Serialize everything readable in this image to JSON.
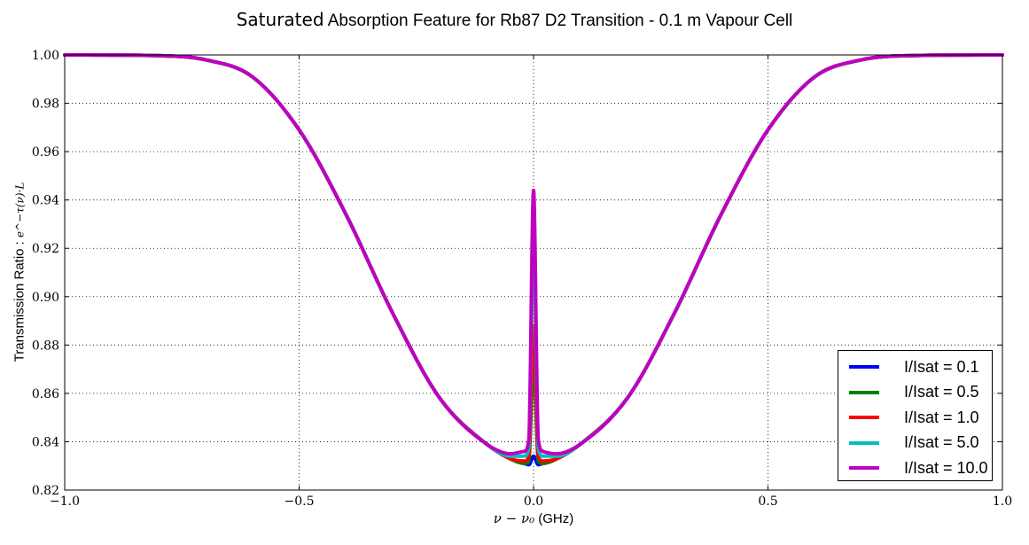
{
  "chart_data": {
    "type": "line",
    "title_prefix": "Saturated",
    "title_rest": "Absorption Feature for Rb87 D2 Transition - 0.1 m Vapour Cell",
    "xlabel_math": "ν − ν₀",
    "xlabel_unit": "(GHz)",
    "ylabel_text": "Transmission Ratio :",
    "ylabel_math": "e^−τ(ν)·L",
    "xlim": [
      -1.0,
      1.0
    ],
    "ylim": [
      0.82,
      1.0
    ],
    "x_ticks": [
      -1.0,
      -0.5,
      0.0,
      0.5,
      1.0
    ],
    "x_tick_labels": [
      "−1.0",
      "−0.5",
      "0.0",
      "0.5",
      "1.0"
    ],
    "y_ticks": [
      0.82,
      0.84,
      0.86,
      0.88,
      0.9,
      0.92,
      0.94,
      0.96,
      0.98,
      1.0
    ],
    "y_tick_labels": [
      "0.82",
      "0.84",
      "0.86",
      "0.88",
      "0.90",
      "0.92",
      "0.94",
      "0.96",
      "0.98",
      "1.00"
    ],
    "grid": true,
    "legend_position": "lower right",
    "series": [
      {
        "name": "I/Isat = 0.1",
        "color": "#0000ff",
        "x": [
          -1.0,
          -0.8,
          -0.7,
          -0.6,
          -0.5,
          -0.4,
          -0.3,
          -0.2,
          -0.1,
          -0.05,
          -0.02,
          -0.01,
          0.0,
          0.01,
          0.02,
          0.05,
          0.1,
          0.2,
          0.3,
          0.4,
          0.5,
          0.6,
          0.7,
          0.8,
          1.0
        ],
        "y": [
          1.0,
          0.9997,
          0.998,
          0.991,
          0.969,
          0.934,
          0.893,
          0.858,
          0.839,
          0.833,
          0.831,
          0.8305,
          0.834,
          0.8305,
          0.831,
          0.833,
          0.839,
          0.858,
          0.893,
          0.934,
          0.969,
          0.991,
          0.998,
          0.9997,
          1.0
        ]
      },
      {
        "name": "I/Isat = 0.5",
        "color": "#008000",
        "x": [
          -1.0,
          -0.8,
          -0.7,
          -0.6,
          -0.5,
          -0.4,
          -0.3,
          -0.2,
          -0.1,
          -0.05,
          -0.02,
          -0.01,
          0.0,
          0.01,
          0.02,
          0.05,
          0.1,
          0.2,
          0.3,
          0.4,
          0.5,
          0.6,
          0.7,
          0.8,
          1.0
        ],
        "y": [
          1.0,
          0.9997,
          0.998,
          0.991,
          0.969,
          0.934,
          0.893,
          0.858,
          0.839,
          0.833,
          0.831,
          0.832,
          0.874,
          0.832,
          0.831,
          0.833,
          0.839,
          0.858,
          0.893,
          0.934,
          0.969,
          0.991,
          0.998,
          0.9997,
          1.0
        ]
      },
      {
        "name": "I/Isat = 1.0",
        "color": "#ff0000",
        "x": [
          -1.0,
          -0.8,
          -0.7,
          -0.6,
          -0.5,
          -0.4,
          -0.3,
          -0.2,
          -0.1,
          -0.05,
          -0.02,
          -0.01,
          0.0,
          0.01,
          0.02,
          0.05,
          0.1,
          0.2,
          0.3,
          0.4,
          0.5,
          0.6,
          0.7,
          0.8,
          1.0
        ],
        "y": [
          1.0,
          0.9997,
          0.998,
          0.991,
          0.969,
          0.934,
          0.893,
          0.858,
          0.839,
          0.833,
          0.832,
          0.834,
          0.888,
          0.834,
          0.832,
          0.833,
          0.839,
          0.858,
          0.893,
          0.934,
          0.969,
          0.991,
          0.998,
          0.9997,
          1.0
        ]
      },
      {
        "name": "I/Isat = 5.0",
        "color": "#00bfbf",
        "x": [
          -1.0,
          -0.8,
          -0.7,
          -0.6,
          -0.5,
          -0.4,
          -0.3,
          -0.2,
          -0.1,
          -0.05,
          -0.02,
          -0.01,
          0.0,
          0.01,
          0.02,
          0.05,
          0.1,
          0.2,
          0.3,
          0.4,
          0.5,
          0.6,
          0.7,
          0.8,
          1.0
        ],
        "y": [
          1.0,
          0.9997,
          0.998,
          0.991,
          0.969,
          0.934,
          0.893,
          0.858,
          0.839,
          0.834,
          0.834,
          0.838,
          0.926,
          0.838,
          0.834,
          0.834,
          0.839,
          0.858,
          0.893,
          0.934,
          0.969,
          0.991,
          0.998,
          0.9997,
          1.0
        ]
      },
      {
        "name": "I/Isat = 10.0",
        "color": "#bf00bf",
        "x": [
          -1.0,
          -0.8,
          -0.7,
          -0.6,
          -0.5,
          -0.4,
          -0.3,
          -0.2,
          -0.1,
          -0.05,
          -0.02,
          -0.01,
          0.0,
          0.01,
          0.02,
          0.05,
          0.1,
          0.2,
          0.3,
          0.4,
          0.5,
          0.6,
          0.7,
          0.8,
          1.0
        ],
        "y": [
          1.0,
          0.9997,
          0.998,
          0.991,
          0.969,
          0.934,
          0.893,
          0.858,
          0.839,
          0.835,
          0.836,
          0.841,
          0.944,
          0.841,
          0.836,
          0.835,
          0.839,
          0.858,
          0.893,
          0.934,
          0.969,
          0.991,
          0.998,
          0.9997,
          1.0
        ]
      }
    ]
  }
}
